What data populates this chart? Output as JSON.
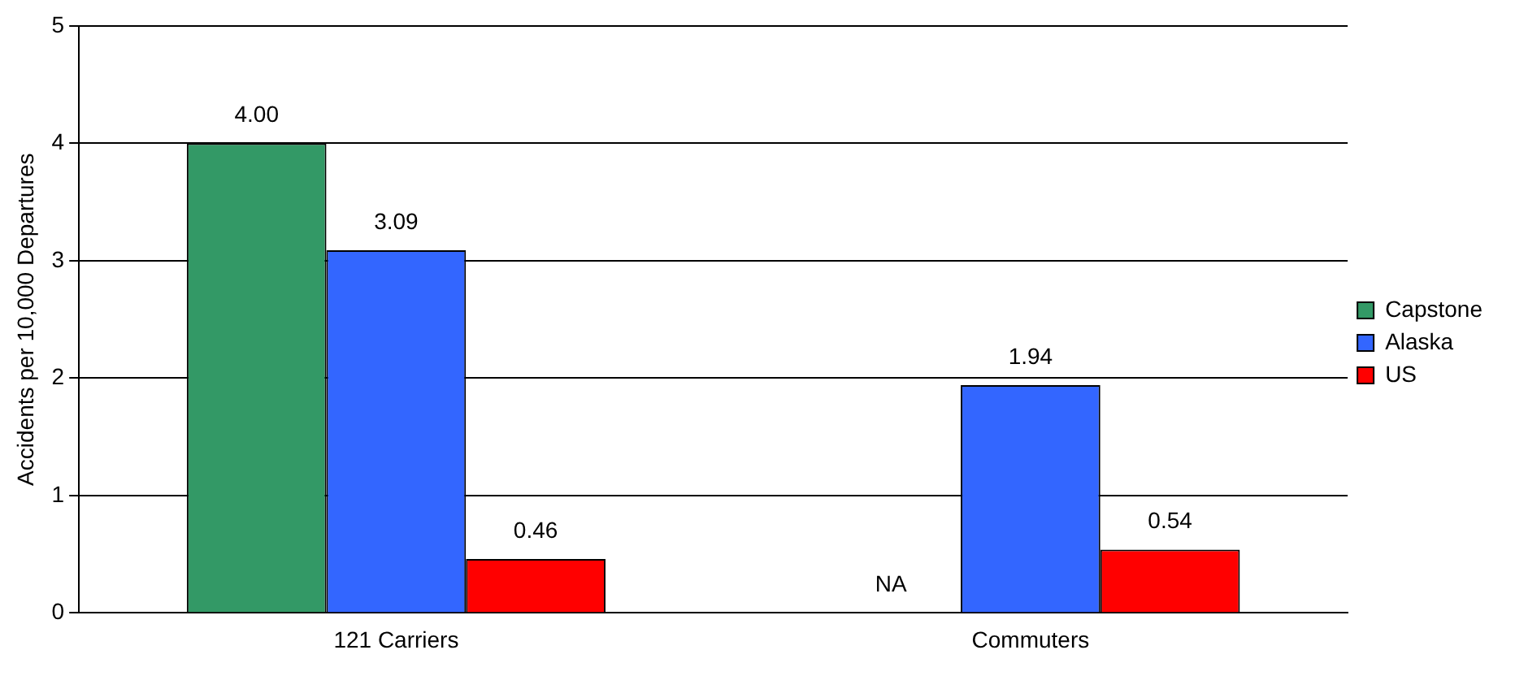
{
  "chart_data": {
    "type": "bar",
    "ylabel": "Accidents per 10,000 Departures",
    "categories": [
      "121 Carriers",
      "Commuters"
    ],
    "series": [
      {
        "name": "Capstone",
        "color": "#339966",
        "values": [
          4.0,
          null
        ],
        "value_labels": [
          "4.00",
          "NA"
        ]
      },
      {
        "name": "Alaska",
        "color": "#3366ff",
        "values": [
          3.09,
          1.94
        ],
        "value_labels": [
          "3.09",
          "1.94"
        ]
      },
      {
        "name": "US",
        "color": "#ff0000",
        "values": [
          0.46,
          0.54
        ],
        "value_labels": [
          "0.46",
          "0.54"
        ]
      }
    ],
    "ylim": [
      0,
      5
    ],
    "yticks": [
      0,
      1,
      2,
      3,
      4,
      5
    ],
    "grid": "y",
    "legend": "right"
  }
}
